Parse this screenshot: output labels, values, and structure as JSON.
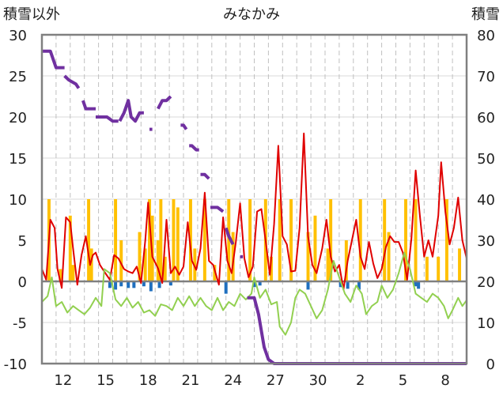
{
  "header": {
    "left_axis_title": "積雪以外",
    "title": "みなかみ",
    "right_axis_title": "積雪"
  },
  "chart_data": {
    "type": "line",
    "title": "みなかみ",
    "left_axis": {
      "label": "積雪以外",
      "min": -10,
      "max": 30,
      "ticks": [
        -10,
        -5,
        0,
        5,
        10,
        15,
        20,
        25,
        30
      ]
    },
    "right_axis": {
      "label": "積雪",
      "min": 0,
      "max": 80,
      "ticks": [
        0,
        10,
        20,
        30,
        40,
        50,
        60,
        70,
        80
      ]
    },
    "x_tick_labels": [
      "12",
      "15",
      "18",
      "21",
      "24",
      "27",
      "30",
      "2",
      "5",
      "8"
    ],
    "x_range_days": [
      0,
      30
    ],
    "x_tick_positions_days": [
      1.5,
      4.5,
      7.5,
      10.5,
      13.5,
      16.5,
      19.5,
      22.5,
      25.5,
      28.5
    ],
    "grid": "vertical dashed every day, horizontal solid",
    "colors": {
      "precip": "#ffc000",
      "temp_max": "#e00000",
      "temp_min": "#92d050",
      "snow_depth": "#7030a0",
      "snow_change": "#1f6fbf",
      "zero_line": "#808080",
      "frame": "#808080"
    },
    "series": [
      {
        "key": "temp_max",
        "axis": "left",
        "points": [
          [
            0,
            1.5
          ],
          [
            0.3,
            0.2
          ],
          [
            0.6,
            7.5
          ],
          [
            0.9,
            6.5
          ],
          [
            1.1,
            1.5
          ],
          [
            1.4,
            -0.8
          ],
          [
            1.7,
            7.8
          ],
          [
            2.0,
            7.2
          ],
          [
            2.2,
            4.0
          ],
          [
            2.5,
            -0.4
          ],
          [
            2.8,
            3.2
          ],
          [
            3.1,
            5.5
          ],
          [
            3.4,
            2.0
          ],
          [
            3.6,
            3.2
          ],
          [
            3.8,
            3.5
          ],
          [
            4.1,
            2.0
          ],
          [
            4.4,
            1.2
          ],
          [
            4.8,
            0.2
          ],
          [
            5.1,
            3.2
          ],
          [
            5.4,
            2.8
          ],
          [
            5.8,
            1.5
          ],
          [
            6.1,
            1.2
          ],
          [
            6.4,
            1.0
          ],
          [
            6.7,
            1.8
          ],
          [
            7.0,
            -0.2
          ],
          [
            7.3,
            5.0
          ],
          [
            7.5,
            9.6
          ],
          [
            7.8,
            3.0
          ],
          [
            8.2,
            1.6
          ],
          [
            8.5,
            -0.2
          ],
          [
            8.8,
            7.5
          ],
          [
            9.1,
            1.0
          ],
          [
            9.4,
            1.8
          ],
          [
            9.7,
            0.8
          ],
          [
            10.0,
            1.8
          ],
          [
            10.3,
            7.2
          ],
          [
            10.6,
            2.5
          ],
          [
            10.9,
            1.4
          ],
          [
            11.2,
            4.0
          ],
          [
            11.5,
            10.8
          ],
          [
            11.8,
            2.5
          ],
          [
            12.1,
            2.0
          ],
          [
            12.5,
            -0.4
          ],
          [
            12.8,
            7.8
          ],
          [
            13.1,
            2.5
          ],
          [
            13.4,
            1.0
          ],
          [
            13.7,
            4.8
          ],
          [
            14.0,
            9.5
          ],
          [
            14.3,
            2.8
          ],
          [
            14.6,
            0.5
          ],
          [
            14.9,
            1.8
          ],
          [
            15.2,
            8.5
          ],
          [
            15.5,
            8.8
          ],
          [
            15.8,
            5.0
          ],
          [
            16.1,
            0.8
          ],
          [
            16.4,
            7.0
          ],
          [
            16.7,
            16.5
          ],
          [
            17.0,
            5.5
          ],
          [
            17.3,
            4.5
          ],
          [
            17.6,
            1.2
          ],
          [
            17.9,
            1.3
          ],
          [
            18.2,
            6.5
          ],
          [
            18.5,
            18.0
          ],
          [
            18.8,
            5.5
          ],
          [
            19.1,
            2.0
          ],
          [
            19.4,
            1.0
          ],
          [
            19.8,
            4.0
          ],
          [
            20.1,
            7.5
          ],
          [
            20.4,
            3.0
          ],
          [
            20.7,
            1.2
          ],
          [
            21.0,
            2.0
          ],
          [
            21.3,
            -1.0
          ],
          [
            21.6,
            2.5
          ],
          [
            21.9,
            5.0
          ],
          [
            22.2,
            7.5
          ],
          [
            22.5,
            3.0
          ],
          [
            22.8,
            1.5
          ],
          [
            23.1,
            4.8
          ],
          [
            23.4,
            2.2
          ],
          [
            23.7,
            0.4
          ],
          [
            24.0,
            1.5
          ],
          [
            24.3,
            4.2
          ],
          [
            24.6,
            5.5
          ],
          [
            24.9,
            4.8
          ],
          [
            25.2,
            4.8
          ],
          [
            25.5,
            3.5
          ],
          [
            25.8,
            0.2
          ],
          [
            26.1,
            5.2
          ],
          [
            26.4,
            13.5
          ],
          [
            26.7,
            8.0
          ],
          [
            27.0,
            3.0
          ],
          [
            27.3,
            5.0
          ],
          [
            27.6,
            3.0
          ],
          [
            28.0,
            8.0
          ],
          [
            28.2,
            14.5
          ],
          [
            28.5,
            8.5
          ],
          [
            28.8,
            4.5
          ],
          [
            29.1,
            6.5
          ],
          [
            29.4,
            10.2
          ],
          [
            29.7,
            5.0
          ],
          [
            30.0,
            2.8
          ]
        ]
      },
      {
        "key": "temp_min",
        "axis": "left",
        "points": [
          [
            0,
            -2.5
          ],
          [
            0.4,
            -1.8
          ],
          [
            0.7,
            0.5
          ],
          [
            1.0,
            -3.0
          ],
          [
            1.4,
            -2.5
          ],
          [
            1.8,
            -3.8
          ],
          [
            2.2,
            -3.0
          ],
          [
            2.6,
            -3.5
          ],
          [
            3.0,
            -4.0
          ],
          [
            3.4,
            -3.2
          ],
          [
            3.8,
            -2.0
          ],
          [
            4.2,
            -3.0
          ],
          [
            4.4,
            1.5
          ],
          [
            4.8,
            1.0
          ],
          [
            5.2,
            -2.2
          ],
          [
            5.6,
            -3.0
          ],
          [
            6.0,
            -2.0
          ],
          [
            6.4,
            -3.2
          ],
          [
            6.8,
            -2.5
          ],
          [
            7.2,
            -3.8
          ],
          [
            7.6,
            -3.5
          ],
          [
            8.0,
            -4.2
          ],
          [
            8.4,
            -2.8
          ],
          [
            8.8,
            -3.0
          ],
          [
            9.2,
            -3.5
          ],
          [
            9.6,
            -2.0
          ],
          [
            10.0,
            -3.0
          ],
          [
            10.4,
            -1.8
          ],
          [
            10.8,
            -3.0
          ],
          [
            11.2,
            -2.0
          ],
          [
            11.6,
            -3.0
          ],
          [
            12.0,
            -3.5
          ],
          [
            12.4,
            -2.0
          ],
          [
            12.8,
            -3.5
          ],
          [
            13.2,
            -2.5
          ],
          [
            13.6,
            -3.0
          ],
          [
            14.0,
            -1.5
          ],
          [
            14.4,
            -2.2
          ],
          [
            14.8,
            -1.5
          ],
          [
            15.0,
            0.5
          ],
          [
            15.4,
            -2.0
          ],
          [
            15.8,
            -1.0
          ],
          [
            16.2,
            -2.8
          ],
          [
            16.6,
            -2.5
          ],
          [
            16.8,
            -5.5
          ],
          [
            17.2,
            -6.5
          ],
          [
            17.6,
            -5.0
          ],
          [
            17.9,
            -2.0
          ],
          [
            18.2,
            -1.0
          ],
          [
            18.6,
            -1.5
          ],
          [
            19.0,
            -3.0
          ],
          [
            19.4,
            -4.5
          ],
          [
            19.8,
            -3.5
          ],
          [
            20.2,
            -1.0
          ],
          [
            20.6,
            2.5
          ],
          [
            21.0,
            0.5
          ],
          [
            21.4,
            -1.5
          ],
          [
            21.8,
            -2.5
          ],
          [
            22.2,
            -0.5
          ],
          [
            22.6,
            -1.5
          ],
          [
            22.9,
            -4.0
          ],
          [
            23.3,
            -3.0
          ],
          [
            23.7,
            -2.5
          ],
          [
            24.0,
            -0.5
          ],
          [
            24.4,
            -2.0
          ],
          [
            24.8,
            -1.0
          ],
          [
            25.2,
            1.0
          ],
          [
            25.6,
            3.5
          ],
          [
            26.0,
            1.5
          ],
          [
            26.4,
            -1.5
          ],
          [
            26.8,
            -2.0
          ],
          [
            27.2,
            -2.5
          ],
          [
            27.6,
            -1.5
          ],
          [
            28.0,
            -2.0
          ],
          [
            28.4,
            -3.0
          ],
          [
            28.7,
            -4.5
          ],
          [
            29.0,
            -3.5
          ],
          [
            29.4,
            -2.0
          ],
          [
            29.7,
            -3.0
          ],
          [
            30.0,
            -2.3
          ]
        ]
      },
      {
        "key": "snow_depth",
        "axis": "right",
        "segments": [
          [
            [
              0,
              76
            ],
            [
              0.6,
              76
            ],
            [
              1.0,
              72
            ],
            [
              1.6,
              72
            ]
          ],
          [
            [
              1.6,
              70
            ],
            [
              1.9,
              69
            ],
            [
              2.4,
              68
            ],
            [
              2.6,
              67
            ]
          ],
          [
            [
              2.9,
              64
            ],
            [
              3.1,
              62
            ],
            [
              3.5,
              62
            ],
            [
              3.8,
              62
            ]
          ],
          [
            [
              3.8,
              60
            ],
            [
              4.6,
              60
            ],
            [
              5.0,
              59
            ],
            [
              5.4,
              59
            ]
          ],
          [
            [
              5.5,
              59
            ],
            [
              5.8,
              61
            ],
            [
              6.1,
              64
            ],
            [
              6.3,
              60
            ],
            [
              6.6,
              59
            ],
            [
              6.9,
              61
            ],
            [
              7.2,
              61
            ]
          ],
          [
            [
              7.6,
              57
            ],
            [
              7.8,
              57
            ]
          ],
          [
            [
              8.2,
              62
            ],
            [
              8.5,
              64
            ],
            [
              8.8,
              64
            ],
            [
              9.1,
              65
            ]
          ],
          [
            [
              9.8,
              58
            ],
            [
              10.0,
              58
            ],
            [
              10.2,
              57
            ]
          ],
          [
            [
              10.4,
              53
            ],
            [
              10.6,
              53
            ],
            [
              10.9,
              52
            ],
            [
              11.1,
              52
            ]
          ],
          [
            [
              11.2,
              46
            ],
            [
              11.5,
              46
            ],
            [
              11.8,
              45
            ]
          ],
          [
            [
              11.9,
              38
            ],
            [
              12.4,
              38
            ],
            [
              12.8,
              37
            ]
          ],
          [
            [
              13.0,
              33
            ],
            [
              13.2,
              31
            ],
            [
              13.5,
              29
            ]
          ],
          [
            [
              14.0,
              26
            ],
            [
              14.2,
              26
            ]
          ],
          [
            [
              14.5,
              16
            ],
            [
              15.0,
              16
            ],
            [
              15.3,
              12
            ],
            [
              15.7,
              4
            ],
            [
              16.0,
              1
            ],
            [
              16.4,
              0
            ],
            [
              30.0,
              0
            ]
          ]
        ]
      }
    ],
    "precip_bars": {
      "axis": "left",
      "values": [
        [
          0.5,
          10
        ],
        [
          1.3,
          1.5
        ],
        [
          2.0,
          8
        ],
        [
          2.2,
          2
        ],
        [
          3.3,
          10
        ],
        [
          3.5,
          4
        ],
        [
          5.2,
          10
        ],
        [
          5.6,
          5
        ],
        [
          6.9,
          6
        ],
        [
          7.3,
          4
        ],
        [
          7.6,
          10
        ],
        [
          7.8,
          8
        ],
        [
          8.2,
          5
        ],
        [
          8.4,
          10
        ],
        [
          8.7,
          3
        ],
        [
          9.3,
          10
        ],
        [
          9.6,
          9
        ],
        [
          10.5,
          10
        ],
        [
          10.8,
          4
        ],
        [
          11.5,
          10
        ],
        [
          12.2,
          2
        ],
        [
          13.2,
          10
        ],
        [
          13.5,
          6
        ],
        [
          14.7,
          10
        ],
        [
          15.8,
          10
        ],
        [
          16.2,
          3
        ],
        [
          16.8,
          10
        ],
        [
          17.6,
          10
        ],
        [
          18.8,
          6
        ],
        [
          19.3,
          8
        ],
        [
          20.2,
          4
        ],
        [
          20.4,
          10
        ],
        [
          21.5,
          5
        ],
        [
          22.5,
          10
        ],
        [
          24.2,
          10
        ],
        [
          24.5,
          6
        ],
        [
          25.7,
          10
        ],
        [
          26.4,
          10
        ],
        [
          27.2,
          3
        ],
        [
          28.0,
          3
        ],
        [
          28.6,
          10
        ],
        [
          29.5,
          4
        ]
      ]
    },
    "snow_change_bars": {
      "axis": "left",
      "values": [
        [
          4.8,
          -0.8
        ],
        [
          5.2,
          -1.0
        ],
        [
          5.6,
          -0.6
        ],
        [
          6.1,
          -0.8
        ],
        [
          6.5,
          -0.8
        ],
        [
          7.2,
          -0.6
        ],
        [
          7.7,
          -1.2
        ],
        [
          8.3,
          -0.8
        ],
        [
          9.1,
          -0.5
        ],
        [
          13.0,
          -1.5
        ],
        [
          15.0,
          -0.7
        ],
        [
          15.4,
          -0.5
        ],
        [
          18.8,
          -1.0
        ],
        [
          21.1,
          -0.7
        ],
        [
          21.6,
          -0.9
        ],
        [
          22.4,
          -1.0
        ],
        [
          26.4,
          -0.6
        ],
        [
          26.6,
          -0.9
        ]
      ]
    }
  }
}
